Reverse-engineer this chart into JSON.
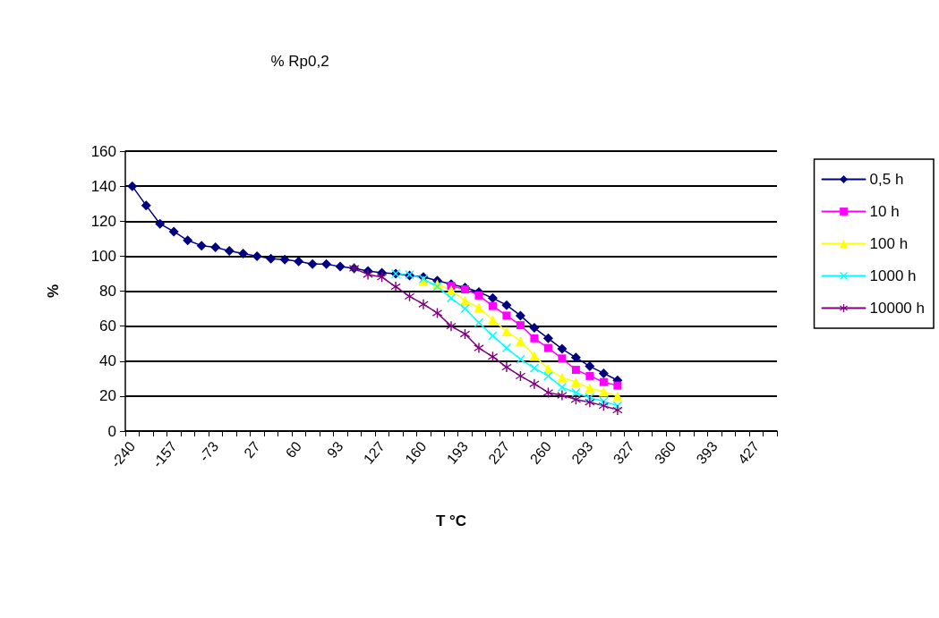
{
  "chart_data": {
    "type": "line",
    "title": "% Rp0,2",
    "xlabel": "T °C",
    "ylabel": "%",
    "categories": [
      "-240",
      null,
      null,
      "-157",
      null,
      null,
      "-73",
      null,
      null,
      "27",
      null,
      null,
      "60",
      null,
      null,
      "93",
      null,
      null,
      "127",
      null,
      null,
      "160",
      null,
      null,
      "193",
      null,
      null,
      "227",
      null,
      null,
      "260",
      null,
      null,
      "293",
      null,
      null,
      "327",
      null,
      null,
      "360",
      null,
      null,
      "393",
      null,
      null,
      "427",
      null
    ],
    "series": [
      {
        "name": "0,5 h",
        "color": "#000080",
        "marker": "diamond",
        "values": [
          140,
          129,
          118.5,
          114,
          109,
          106,
          105,
          103,
          101.5,
          100,
          98.5,
          98,
          97,
          95.5,
          95.5,
          94,
          93,
          91.5,
          90.5,
          90,
          89,
          88,
          86,
          84,
          82,
          79.5,
          76,
          72,
          66,
          59,
          53,
          47,
          42,
          37,
          33,
          29,
          null,
          null,
          null,
          null,
          null,
          null,
          null,
          null,
          null,
          null,
          null
        ]
      },
      {
        "name": "10 h",
        "color": "#ff00ff",
        "marker": "square",
        "values": [
          null,
          null,
          null,
          null,
          null,
          null,
          null,
          null,
          null,
          null,
          null,
          null,
          null,
          null,
          null,
          null,
          null,
          null,
          null,
          null,
          null,
          null,
          null,
          83,
          81,
          77.5,
          71.5,
          66,
          60.5,
          53,
          47.5,
          41.5,
          35,
          31.5,
          28,
          26,
          null,
          null,
          null,
          null,
          null,
          null,
          null,
          null,
          null,
          null,
          null
        ]
      },
      {
        "name": "100 h",
        "color": "#ffff00",
        "marker": "triangle",
        "values": [
          null,
          null,
          null,
          null,
          null,
          null,
          null,
          null,
          null,
          null,
          null,
          null,
          null,
          null,
          null,
          null,
          null,
          null,
          null,
          null,
          null,
          86,
          84,
          80.5,
          74.5,
          70.5,
          63.5,
          57,
          51.5,
          43,
          35.5,
          30.5,
          28,
          24.5,
          22.5,
          20,
          null,
          null,
          null,
          null,
          null,
          null,
          null,
          null,
          null,
          null,
          null
        ]
      },
      {
        "name": "1000 h",
        "color": "#00ffff",
        "marker": "cross",
        "values": [
          null,
          null,
          null,
          null,
          null,
          null,
          null,
          null,
          null,
          null,
          null,
          null,
          null,
          null,
          null,
          null,
          null,
          null,
          null,
          90,
          89.5,
          87,
          82.5,
          76,
          70,
          62,
          54.5,
          47.5,
          41,
          36,
          31.5,
          25,
          22,
          19,
          17,
          14.5,
          null,
          null,
          null,
          null,
          null,
          null,
          null,
          null,
          null,
          null,
          null
        ]
      },
      {
        "name": "10000 h",
        "color": "#800080",
        "marker": "star",
        "values": [
          null,
          null,
          null,
          null,
          null,
          null,
          null,
          null,
          null,
          null,
          null,
          null,
          null,
          null,
          null,
          null,
          93,
          89.5,
          88,
          82.5,
          77,
          72.5,
          67.5,
          60,
          55.5,
          47.5,
          42.5,
          36.5,
          31.5,
          27,
          22,
          20.5,
          18,
          16.5,
          14.5,
          12,
          null,
          null,
          null,
          null,
          null,
          null,
          null,
          null,
          null,
          null,
          null
        ]
      }
    ],
    "ylim": [
      0,
      160
    ],
    "yticks": [
      0,
      20,
      40,
      60,
      80,
      100,
      120,
      140,
      160
    ],
    "grid": "y",
    "legend": "right"
  }
}
